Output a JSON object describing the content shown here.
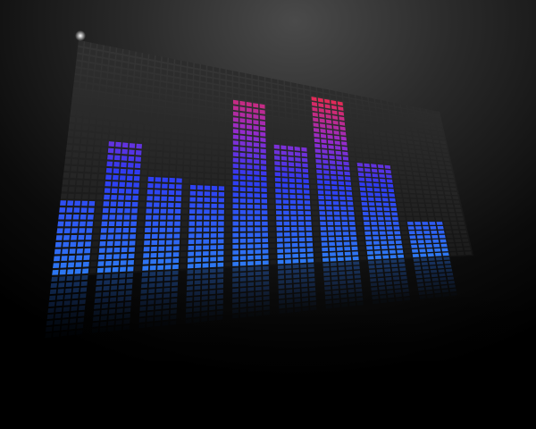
{
  "scene": {
    "subject": "3d-led-equalizer-panel",
    "background_color": "#050505",
    "panel_color": "#2b2b2b",
    "colors": {
      "top": "#ff2a3c",
      "mid": "#9b2bd6",
      "bottom": "#2f3dff",
      "bottom_light": "#2f7dff"
    }
  },
  "equalizer": {
    "max_level": 1.0,
    "bars": [
      {
        "name": "bar-1",
        "level": 0.32
      },
      {
        "name": "bar-2",
        "level": 0.6
      },
      {
        "name": "bar-3",
        "level": 0.45
      },
      {
        "name": "bar-4",
        "level": 0.4
      },
      {
        "name": "bar-5",
        "level": 0.86
      },
      {
        "name": "bar-6",
        "level": 0.64
      },
      {
        "name": "bar-7",
        "level": 0.94
      },
      {
        "name": "bar-8",
        "level": 0.6
      },
      {
        "name": "bar-9",
        "level": 0.23
      }
    ]
  }
}
